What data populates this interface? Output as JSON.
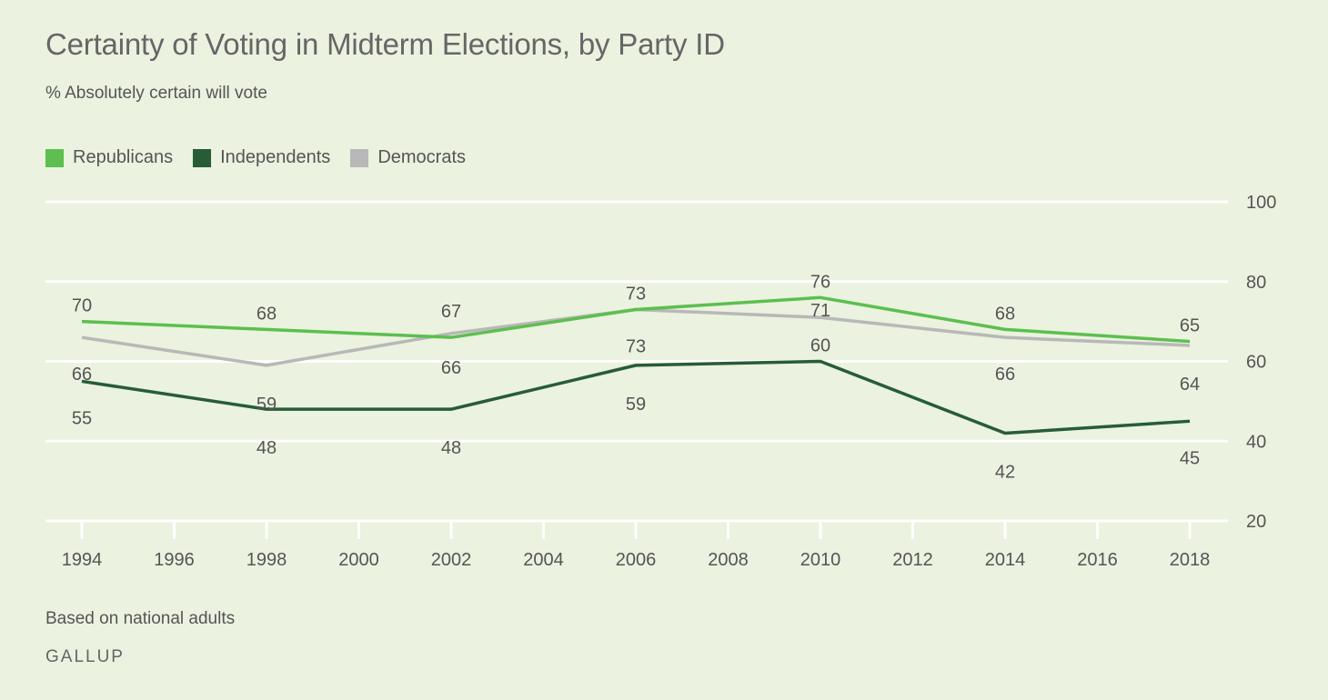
{
  "title": "Certainty of Voting in Midterm Elections, by Party ID",
  "subtitle": "% Absolutely certain will vote",
  "footnote": "Based on national adults",
  "brand": "GALLUP",
  "colors": {
    "background": "#ebf2df",
    "grid": "#ffffff",
    "text": "#555555"
  },
  "legend": [
    {
      "name": "Republicans",
      "color": "#5cbf4f"
    },
    {
      "name": "Independents",
      "color": "#275c37"
    },
    {
      "name": "Democrats",
      "color": "#b8b8b8"
    }
  ],
  "chart_data": {
    "type": "line",
    "title": "Certainty of Voting in Midterm Elections, by Party ID",
    "subtitle": "% Absolutely certain will vote",
    "x": [
      1994,
      1998,
      2002,
      2006,
      2010,
      2014,
      2018
    ],
    "xlim": [
      1994,
      2018
    ],
    "x_ticks": [
      1994,
      1996,
      1998,
      2000,
      2002,
      2004,
      2006,
      2008,
      2010,
      2012,
      2014,
      2016,
      2018
    ],
    "ylim": [
      20,
      100
    ],
    "y_ticks": [
      20,
      40,
      60,
      80,
      100
    ],
    "y_axis_position": "right",
    "grid": true,
    "legend_position": "top-left",
    "series": [
      {
        "name": "Republicans",
        "color": "#5cbf4f",
        "values": [
          70,
          68,
          66,
          73,
          76,
          68,
          65
        ],
        "shown_labels": [
          70,
          68,
          null,
          73,
          76,
          68,
          65
        ]
      },
      {
        "name": "Independents",
        "color": "#275c37",
        "values": [
          55,
          48,
          48,
          59,
          60,
          42,
          45
        ],
        "shown_labels": [
          55,
          48,
          48,
          59,
          60,
          42,
          45
        ]
      },
      {
        "name": "Democrats",
        "color": "#b8b8b8",
        "values": [
          66,
          59,
          67,
          73,
          71,
          66,
          64
        ],
        "shown_labels": [
          66,
          59,
          67,
          73,
          71,
          66,
          64
        ]
      }
    ],
    "extra_labels": [
      {
        "x": 2002,
        "text": "66"
      }
    ]
  }
}
